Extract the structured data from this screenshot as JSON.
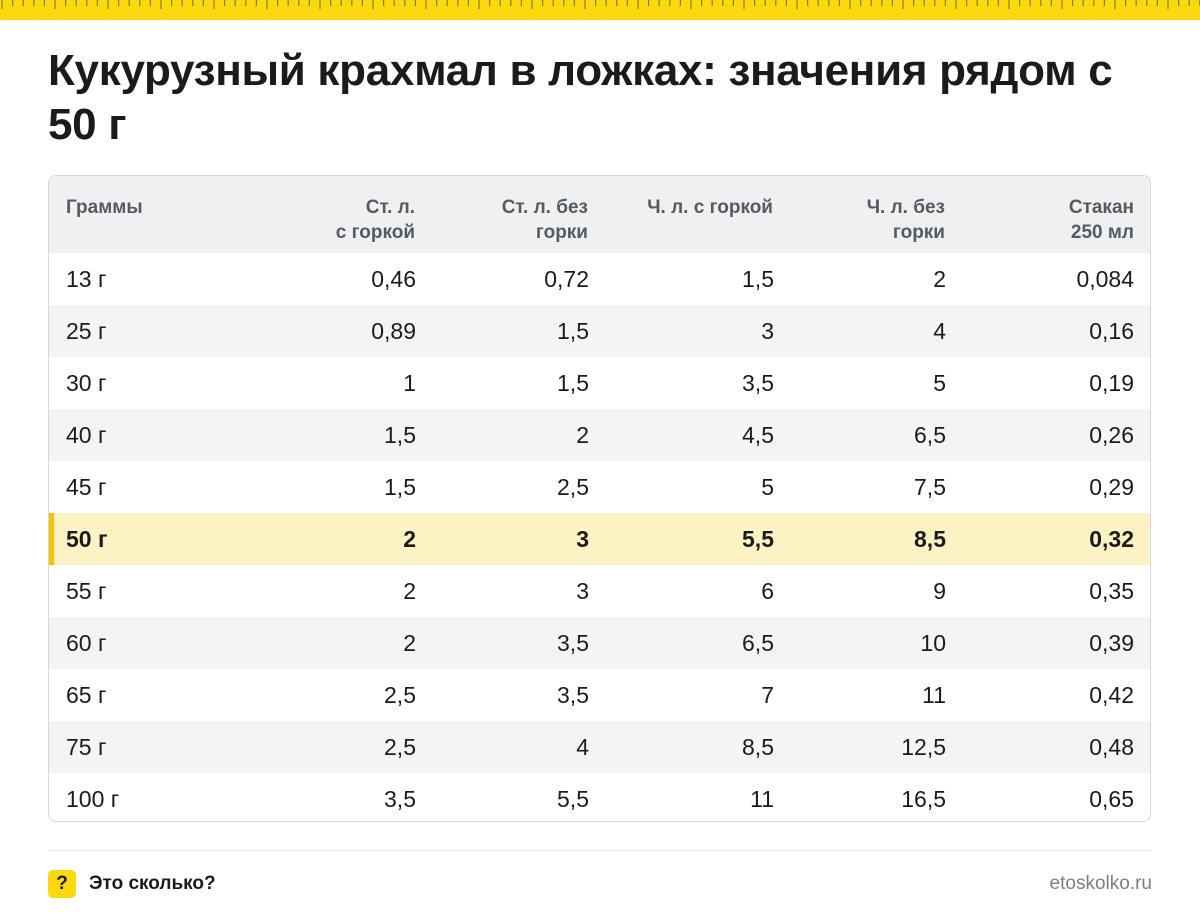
{
  "page": {
    "title": "Кукурузный крахмал в ложках: значения рядом с 50 г"
  },
  "table": {
    "headers": [
      [
        "Граммы",
        ""
      ],
      [
        "Ст. л.",
        "с горкой"
      ],
      [
        "Ст. л. без",
        "горки"
      ],
      [
        "Ч. л. с горкой",
        ""
      ],
      [
        "Ч. л. без",
        "горки"
      ],
      [
        "Стакан",
        "250 мл"
      ]
    ],
    "highlighted_row": "50 г",
    "rows": [
      [
        "13 г",
        "0,46",
        "0,72",
        "1,5",
        "2",
        "0,084"
      ],
      [
        "25 г",
        "0,89",
        "1,5",
        "3",
        "4",
        "0,16"
      ],
      [
        "30 г",
        "1",
        "1,5",
        "3,5",
        "5",
        "0,19"
      ],
      [
        "40 г",
        "1,5",
        "2",
        "4,5",
        "6,5",
        "0,26"
      ],
      [
        "45 г",
        "1,5",
        "2,5",
        "5",
        "7,5",
        "0,29"
      ],
      [
        "50 г",
        "2",
        "3",
        "5,5",
        "8,5",
        "0,32"
      ],
      [
        "55 г",
        "2",
        "3",
        "6",
        "9",
        "0,35"
      ],
      [
        "60 г",
        "2",
        "3,5",
        "6,5",
        "10",
        "0,39"
      ],
      [
        "65 г",
        "2,5",
        "3,5",
        "7",
        "11",
        "0,42"
      ],
      [
        "75 г",
        "2,5",
        "4",
        "8,5",
        "12,5",
        "0,48"
      ],
      [
        "100 г",
        "3,5",
        "5,5",
        "11",
        "16,5",
        "0,65"
      ]
    ]
  },
  "footer": {
    "badge": "?",
    "brand": "Это сколько?",
    "site": "etoskolko.ru"
  },
  "colors": {
    "accent_yellow": "#fcd90f",
    "highlight_row": "#fdf2c4",
    "header_bg": "#eef0f2"
  }
}
